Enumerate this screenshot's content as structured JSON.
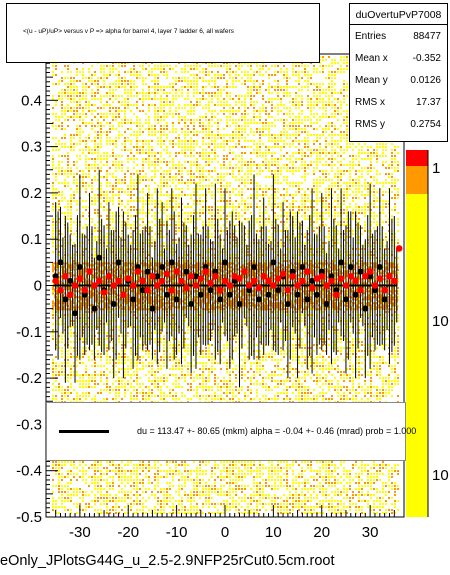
{
  "title": "<(u - uP)/uP> versus   v P => alpha for barrel 4, layer 7 ladder 6, all wafers",
  "stats": {
    "name": "duOvertuPvP7008",
    "rows": [
      {
        "label": "Entries",
        "value": "88477"
      },
      {
        "label": "Mean x",
        "value": "-0.352"
      },
      {
        "label": "Mean y",
        "value": "0.0126"
      },
      {
        "label": "RMS x",
        "value": "17.37"
      },
      {
        "label": "RMS y",
        "value": "0.2754"
      }
    ]
  },
  "legend_text": "du =  113.47 +- 80.65 (mkm) alpha =   -0.04 +-  0.46 (mrad) prob = 1.000",
  "filename": "eOnly_JPlotsG44G_u_2.5-2.9NFP25rCut0.5cm.root",
  "colors": {
    "red": "#ff0000",
    "black": "#000000",
    "yellow": "#ffff00",
    "orange": "#ff9900"
  },
  "chart_data": {
    "type": "scatter",
    "xlim": [
      -37,
      37
    ],
    "ylim": [
      -0.5,
      0.5
    ],
    "x_ticks": [
      -30,
      -20,
      -10,
      0,
      10,
      20,
      30
    ],
    "y_ticks": [
      -0.5,
      -0.4,
      -0.3,
      -0.2,
      -0.1,
      0,
      0.1,
      0.2,
      0.3,
      0.4
    ],
    "x_tick_labels": [
      "-30",
      "-20",
      "-10",
      "0",
      "10",
      "20",
      "30"
    ],
    "y_tick_labels": [
      "-0.5",
      "-0.4",
      "-0.3",
      "-0.2",
      "-0.1",
      "0",
      "0.1",
      "0.2",
      "0.3",
      "0.4"
    ],
    "z_tick_labels": [
      "1",
      "10",
      "10"
    ],
    "fit": {
      "slope": 0.0,
      "intercept": 0.0
    },
    "red_series": [
      [
        -35,
        0.01
      ],
      [
        -34,
        -0.01
      ],
      [
        -33,
        0.02
      ],
      [
        -32,
        -0.02
      ],
      [
        -31,
        0.0
      ],
      [
        -30,
        0.015
      ],
      [
        -29,
        -0.01
      ],
      [
        -28,
        0.03
      ],
      [
        -27,
        0.0
      ],
      [
        -26,
        0.01
      ],
      [
        -25,
        -0.015
      ],
      [
        -24,
        0.02
      ],
      [
        -23,
        0.0
      ],
      [
        -22,
        0.01
      ],
      [
        -21,
        -0.02
      ],
      [
        -20,
        0.015
      ],
      [
        -19,
        0.0
      ],
      [
        -18,
        0.03
      ],
      [
        -17,
        0.01
      ],
      [
        -16,
        -0.01
      ],
      [
        -15,
        0.02
      ],
      [
        -14,
        0.0
      ],
      [
        -13,
        0.01
      ],
      [
        -12,
        0.025
      ],
      [
        -11,
        -0.01
      ],
      [
        -10,
        0.03
      ],
      [
        -9,
        0.01
      ],
      [
        -8,
        -0.005
      ],
      [
        -7,
        0.02
      ],
      [
        -6,
        0.0
      ],
      [
        -5,
        0.015
      ],
      [
        -4,
        0.03
      ],
      [
        -3,
        0.005
      ],
      [
        -2,
        0.02
      ],
      [
        -1,
        -0.01
      ],
      [
        0,
        0.01
      ],
      [
        1,
        0.0
      ],
      [
        2,
        0.02
      ],
      [
        3,
        0.015
      ],
      [
        4,
        0.03
      ],
      [
        5,
        0.0
      ],
      [
        6,
        0.01
      ],
      [
        7,
        -0.005
      ],
      [
        8,
        0.02
      ],
      [
        9,
        0.01
      ],
      [
        10,
        0.0
      ],
      [
        11,
        0.015
      ],
      [
        12,
        0.025
      ],
      [
        13,
        -0.01
      ],
      [
        14,
        0.02
      ],
      [
        15,
        0.0
      ],
      [
        16,
        0.01
      ],
      [
        17,
        0.03
      ],
      [
        18,
        -0.005
      ],
      [
        19,
        0.015
      ],
      [
        20,
        0.02
      ],
      [
        21,
        0.0
      ],
      [
        22,
        0.01
      ],
      [
        23,
        -0.02
      ],
      [
        24,
        0.015
      ],
      [
        25,
        0.0
      ],
      [
        26,
        0.02
      ],
      [
        27,
        0.01
      ],
      [
        28,
        -0.01
      ],
      [
        29,
        0.02
      ],
      [
        30,
        0.03
      ],
      [
        31,
        0.0
      ],
      [
        32,
        0.015
      ],
      [
        33,
        -0.01
      ],
      [
        34,
        0.02
      ],
      [
        35,
        0.01
      ],
      [
        36,
        0.08
      ]
    ],
    "black_series": [
      [
        -35,
        0.02
      ],
      [
        -34,
        0.05
      ],
      [
        -33,
        -0.03
      ],
      [
        -32,
        0.01
      ],
      [
        -31,
        -0.06
      ],
      [
        -30,
        0.04
      ],
      [
        -29,
        -0.02
      ],
      [
        -28,
        0.03
      ],
      [
        -27,
        -0.05
      ],
      [
        -26,
        0.06
      ],
      [
        -25,
        -0.01
      ],
      [
        -24,
        0.02
      ],
      [
        -23,
        -0.04
      ],
      [
        -22,
        0.05
      ],
      [
        -21,
        -0.02
      ],
      [
        -20,
        0.01
      ],
      [
        -19,
        -0.03
      ],
      [
        -18,
        0.04
      ],
      [
        -17,
        -0.01
      ],
      [
        -16,
        0.03
      ],
      [
        -15,
        -0.05
      ],
      [
        -14,
        0.02
      ],
      [
        -13,
        0.04
      ],
      [
        -12,
        -0.02
      ],
      [
        -11,
        0.05
      ],
      [
        -10,
        -0.03
      ],
      [
        -9,
        0.01
      ],
      [
        -8,
        0.03
      ],
      [
        -7,
        -0.04
      ],
      [
        -6,
        0.02
      ],
      [
        -5,
        -0.02
      ],
      [
        -4,
        0.04
      ],
      [
        -3,
        -0.01
      ],
      [
        -2,
        0.03
      ],
      [
        -1,
        -0.03
      ],
      [
        0,
        0.05
      ],
      [
        1,
        -0.02
      ],
      [
        2,
        0.01
      ],
      [
        3,
        -0.04
      ],
      [
        4,
        0.03
      ],
      [
        5,
        -0.01
      ],
      [
        6,
        0.04
      ],
      [
        7,
        -0.03
      ],
      [
        8,
        0.02
      ],
      [
        9,
        -0.02
      ],
      [
        10,
        0.05
      ],
      [
        11,
        -0.01
      ],
      [
        12,
        0.02
      ],
      [
        13,
        -0.04
      ],
      [
        14,
        0.03
      ],
      [
        15,
        -0.02
      ],
      [
        16,
        0.04
      ],
      [
        17,
        -0.03
      ],
      [
        18,
        0.01
      ],
      [
        19,
        -0.02
      ],
      [
        20,
        0.03
      ],
      [
        21,
        -0.04
      ],
      [
        22,
        0.02
      ],
      [
        23,
        -0.01
      ],
      [
        24,
        0.05
      ],
      [
        25,
        -0.03
      ],
      [
        26,
        0.04
      ],
      [
        27,
        -0.02
      ],
      [
        28,
        0.03
      ],
      [
        29,
        -0.05
      ],
      [
        30,
        0.02
      ],
      [
        31,
        -0.01
      ],
      [
        32,
        0.04
      ],
      [
        33,
        -0.03
      ],
      [
        34,
        0.02
      ],
      [
        35,
        0.01
      ]
    ]
  }
}
